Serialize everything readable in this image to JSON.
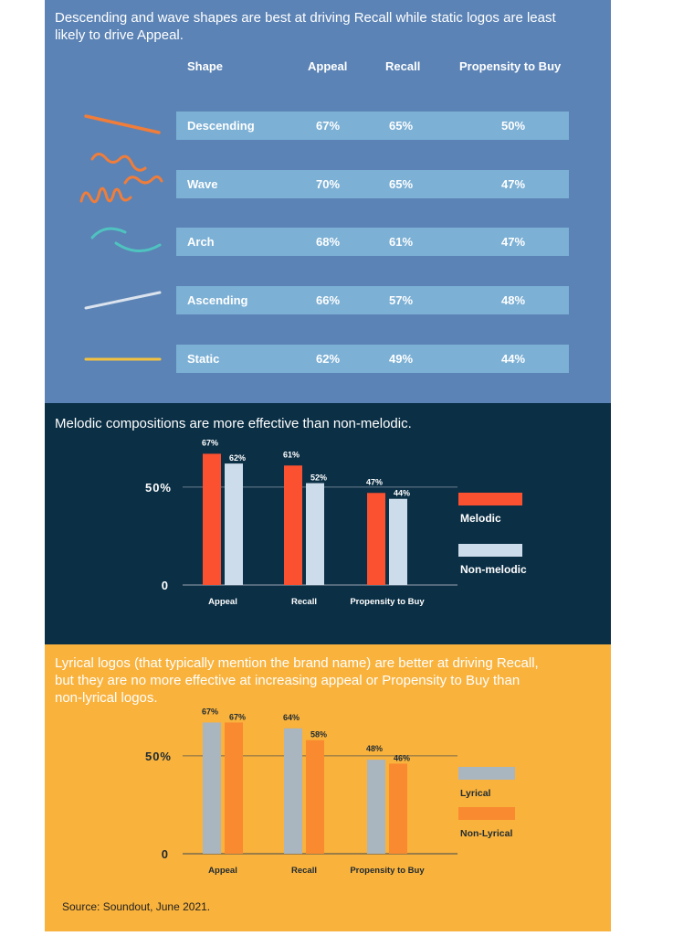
{
  "shapes": {
    "title_line1": "Descending and wave shapes are best at driving Recall while static logos are least",
    "title_line2": "likely to drive Appeal.",
    "headers": {
      "shape": "Shape",
      "appeal": "Appeal",
      "recall": "Recall",
      "propensity": "Propensity to Buy"
    },
    "rows": [
      {
        "name": "Descending",
        "icon": "descending-line-icon",
        "appeal": "67%",
        "recall": "65%",
        "propensity": "50%"
      },
      {
        "name": "Wave",
        "icon": "wave-lines-icon",
        "appeal": "70%",
        "recall": "65%",
        "propensity": "47%"
      },
      {
        "name": "Arch",
        "icon": "arch-curves-icon",
        "appeal": "68%",
        "recall": "61%",
        "propensity": "47%"
      },
      {
        "name": "Ascending",
        "icon": "ascending-line-icon",
        "appeal": "66%",
        "recall": "57%",
        "propensity": "48%"
      },
      {
        "name": "Static",
        "icon": "flat-line-icon",
        "appeal": "62%",
        "recall": "49%",
        "propensity": "44%"
      }
    ],
    "colors": {
      "background": "#5b83b5",
      "row": "#7cb0d5",
      "orange": "#f07d3a",
      "teal": "#4fc3c0",
      "light": "#dbe3ee",
      "yellow": "#f4c13e"
    }
  },
  "melodic": {
    "title": "Melodic compositions are more effective than non-melodic."
  },
  "lyrical": {
    "title_line1": "Lyrical logos (that typically mention the brand name) are better at driving Recall,",
    "title_line2": "but they are no more effective at increasing appeal or Propensity to Buy than",
    "title_line3": "non-lyrical logos."
  },
  "source": "Source: Soundout, June 2021.",
  "chart_data": [
    {
      "type": "bar",
      "title": "Melodic compositions are more effective than non-melodic.",
      "categories": [
        "Appeal",
        "Recall",
        "Propensity to Buy"
      ],
      "series": [
        {
          "name": "Melodic",
          "values": [
            67,
            61,
            47
          ],
          "labels": [
            "67%",
            "61%",
            "47%"
          ],
          "color": "#fc5130"
        },
        {
          "name": "Non-melodic",
          "values": [
            62,
            52,
            44
          ],
          "labels": [
            "62%",
            "52%",
            "44%"
          ],
          "color": "#cddcea"
        }
      ],
      "yticks": [
        {
          "value": 0,
          "label": "0"
        },
        {
          "value": 50,
          "label": "50%"
        }
      ],
      "ylim": [
        0,
        70
      ],
      "grid_lines": [
        50
      ],
      "legend_position": "right",
      "label_color": "#ffffff",
      "axis_color": "#6b7f8c"
    },
    {
      "type": "bar",
      "title": "Lyrical logos (that typically mention the brand name) are better at driving Recall, but they are no more effective at increasing appeal or Propensity to Buy than non-lyrical logos.",
      "categories": [
        "Appeal",
        "Recall",
        "Propensity to Buy"
      ],
      "series": [
        {
          "name": "Lyrical",
          "values": [
            67,
            64,
            48
          ],
          "labels": [
            "67%",
            "64%",
            "48%"
          ],
          "color": "#a9b5bf"
        },
        {
          "name": "Non-Lyrical",
          "values": [
            67,
            58,
            46
          ],
          "labels": [
            "67%",
            "58%",
            "46%"
          ],
          "color": "#f98a30"
        }
      ],
      "yticks": [
        {
          "value": 0,
          "label": "0"
        },
        {
          "value": 50,
          "label": "50%"
        }
      ],
      "ylim": [
        0,
        70
      ],
      "grid_lines": [
        50
      ],
      "legend_position": "right",
      "label_color": "#1e2a33",
      "axis_color": "#7a6a4a"
    }
  ]
}
